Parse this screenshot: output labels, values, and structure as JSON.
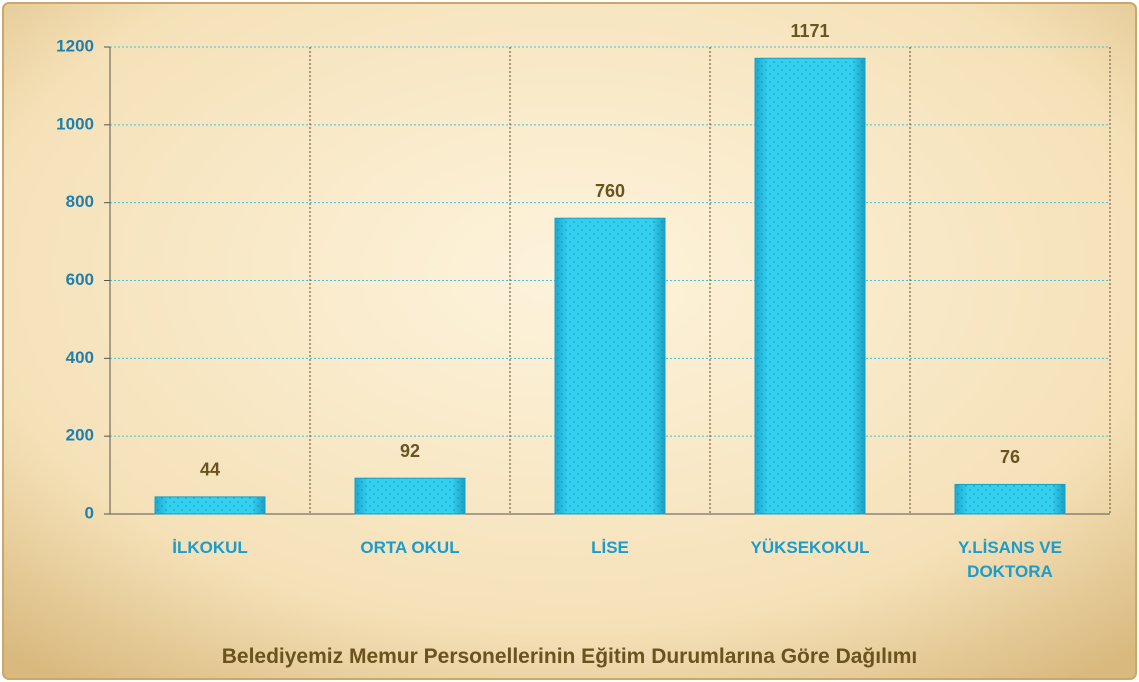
{
  "chart_data": {
    "type": "bar",
    "title": "Belediyemiz Memur Personellerinin Eğitim Durumlarına Göre Dağılımı",
    "categories": [
      "İLKOKUL",
      "ORTA OKUL",
      "LİSE",
      "YÜKSEKOKUL",
      "Y.LİSANS VE DOKTORA"
    ],
    "values": [
      44,
      92,
      760,
      1171,
      76
    ],
    "color": "#2ec8ea",
    "ylim": [
      0,
      1200
    ],
    "yticks": [
      0,
      200,
      400,
      600,
      800,
      1000,
      1200
    ],
    "grid": true
  }
}
